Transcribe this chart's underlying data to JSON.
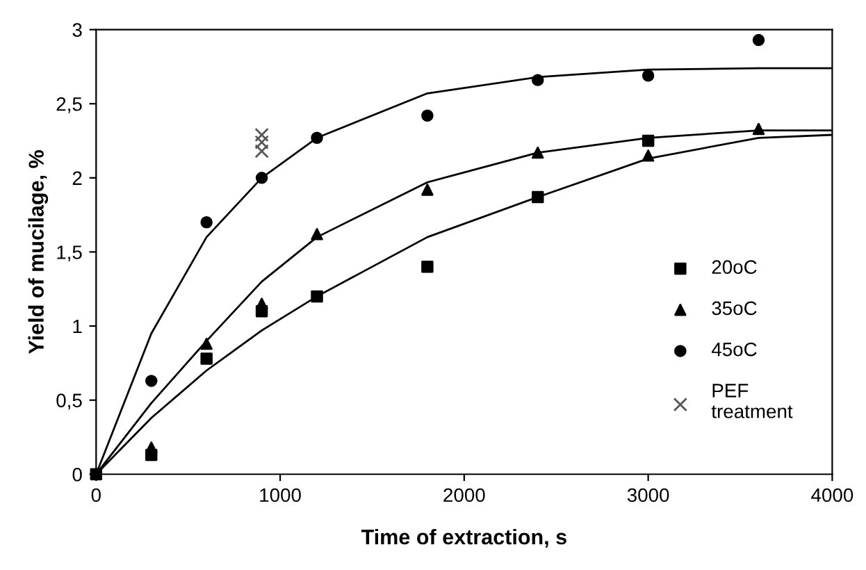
{
  "chart_data": {
    "type": "scatter",
    "xlabel": "Time of extraction, s",
    "ylabel": "Yield of mucilage, %",
    "xlim": [
      0,
      4000
    ],
    "xticks": [
      0,
      1000,
      2000,
      3000,
      4000
    ],
    "ylim": [
      0,
      3
    ],
    "yticks": [
      0,
      {
        "value": 0.5,
        "label": "0,5"
      },
      1,
      {
        "value": 1.5,
        "label": "1,5"
      },
      2,
      {
        "value": 2.5,
        "label": "2,5"
      },
      3
    ],
    "grid": false,
    "legend": "right",
    "series": [
      {
        "name": "20oC",
        "marker": "square",
        "color": "#000000",
        "x": [
          0,
          300,
          600,
          900,
          1200,
          1800,
          2400,
          3000
        ],
        "values": [
          0,
          0.13,
          0.78,
          1.1,
          1.2,
          1.4,
          1.87,
          2.25
        ]
      },
      {
        "name": "35oC",
        "marker": "triangle",
        "color": "#000000",
        "x": [
          300,
          600,
          900,
          1200,
          1800,
          2400,
          3000,
          3600
        ],
        "values": [
          0.18,
          0.88,
          1.15,
          1.62,
          1.92,
          2.17,
          2.15,
          2.33
        ]
      },
      {
        "name": "45oC",
        "marker": "circle",
        "color": "#000000",
        "x": [
          300,
          600,
          900,
          1200,
          1800,
          2400,
          3000,
          3600
        ],
        "values": [
          0.63,
          1.7,
          2.0,
          2.27,
          2.42,
          2.66,
          2.69,
          2.93
        ]
      },
      {
        "name": "PEF\ntreatment",
        "marker": "cross",
        "color": "#555555",
        "x": [
          900,
          900,
          900
        ],
        "values": [
          2.18,
          2.24,
          2.29
        ]
      },
      {
        "type": "line",
        "marker": "none",
        "color": "#000000",
        "x": [
          0,
          300,
          600,
          900,
          1200,
          1800,
          2400,
          3000,
          3600,
          4000
        ],
        "values": [
          0,
          0.38,
          0.7,
          0.97,
          1.2,
          1.6,
          1.87,
          2.13,
          2.27,
          2.29
        ]
      },
      {
        "type": "line",
        "marker": "none",
        "color": "#000000",
        "x": [
          0,
          300,
          600,
          900,
          1200,
          1800,
          2400,
          3000,
          3600,
          4000
        ],
        "values": [
          0,
          0.48,
          0.9,
          1.3,
          1.6,
          1.97,
          2.17,
          2.27,
          2.32,
          2.32
        ]
      },
      {
        "type": "line",
        "marker": "none",
        "color": "#000000",
        "x": [
          0,
          300,
          600,
          900,
          1200,
          1800,
          2400,
          3000,
          3600,
          4000
        ],
        "values": [
          0,
          0.95,
          1.6,
          2.0,
          2.27,
          2.57,
          2.68,
          2.73,
          2.74,
          2.74
        ]
      }
    ]
  }
}
